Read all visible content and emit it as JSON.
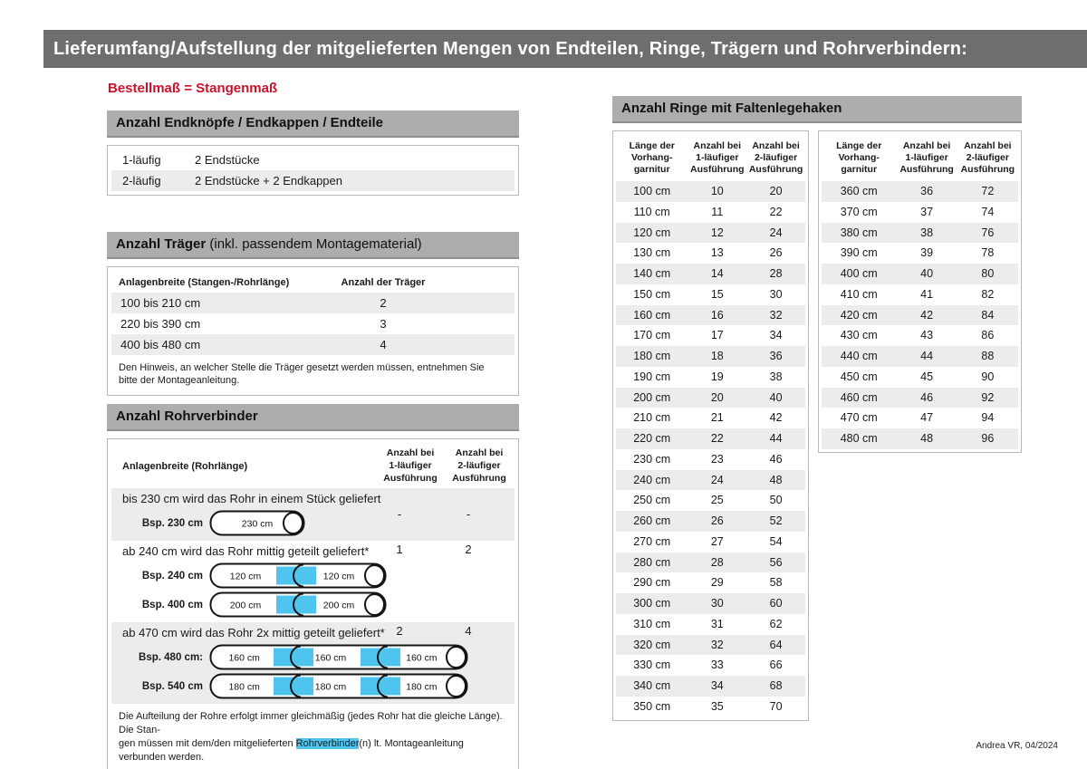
{
  "page": {
    "header_title": "Lieferumfang/Aufstellung der mitgelieferten Mengen von Endteilen, Ringe, Trägern und Rohrverbindern:",
    "subtitle": "Bestellmaß = Stangenmaß",
    "footer": "Andrea VR, 04/2024"
  },
  "colors": {
    "header_bar_gray": "#6e6e6e",
    "section_bar_gray": "#adadad",
    "row_shade_gray": "#ececec",
    "accent_red": "#c8122d",
    "connector_cyan": "#4fc4ee"
  },
  "endteile": {
    "title": "Anzahl Endknöpfe / Endkappen / Endteile",
    "rows": [
      {
        "label": "1-läufig",
        "value": "2 Endstücke"
      },
      {
        "label": "2-läufig",
        "value": "2 Endstücke + 2 Endkappen"
      }
    ]
  },
  "traeger": {
    "title_bold": "Anzahl Träger",
    "title_rest": " (inkl. passendem Montagematerial)",
    "col1": "Anlagenbreite (Stangen-/Rohrlänge)",
    "col2": "Anzahl der Träger",
    "rows": [
      {
        "range": "100 bis 210 cm",
        "count": "2"
      },
      {
        "range": "220 bis 390 cm",
        "count": "3"
      },
      {
        "range": "400 bis 480 cm",
        "count": "4"
      }
    ],
    "note": "Den Hinweis, an welcher Stelle die Träger gesetzt werden müssen, entnehmen Sie bitte der Montageanleitung."
  },
  "rohrverbinder": {
    "title": "Anzahl Rohrverbinder",
    "col1": "Anlagenbreite (Rohrlänge)",
    "col2": "Anzahl bei\n1-läufiger\nAusführung",
    "col3": "Anzahl bei\n2-läufiger\nAusführung",
    "groups": [
      {
        "text": "bis 230 cm wird das Rohr in einem Stück geliefert",
        "v1": "-",
        "v2": "-",
        "shaded": true,
        "centered": true,
        "rods": [
          {
            "label": "Bsp. 230 cm",
            "segments": [
              "230 cm"
            ]
          }
        ]
      },
      {
        "text": "ab 240 cm wird das Rohr mittig geteilt geliefert*",
        "v1": "1",
        "v2": "2",
        "shaded": false,
        "centered": false,
        "rods": [
          {
            "label": "Bsp. 240 cm",
            "segments": [
              "120 cm",
              "120 cm"
            ]
          },
          {
            "label": "Bsp. 400 cm",
            "segments": [
              "200 cm",
              "200 cm"
            ]
          }
        ]
      },
      {
        "text": "ab 470 cm wird das Rohr 2x mittig geteilt geliefert*",
        "v1": "2",
        "v2": "4",
        "shaded": true,
        "centered": false,
        "rods": [
          {
            "label": "Bsp. 480 cm:",
            "segments": [
              "160 cm",
              "160 cm",
              "160 cm"
            ]
          },
          {
            "label": "Bsp. 540 cm",
            "segments": [
              "180 cm",
              "180 cm",
              "180 cm"
            ]
          }
        ]
      }
    ],
    "note_line1": "Die Aufteilung der Rohre erfolgt immer gleichmäßig (jedes Rohr hat die gleiche Länge). Die Stan-",
    "note_line2_pre": "gen müssen mit dem/den mitgelieferten ",
    "note_highlight": "Rohrverbinder",
    "note_line2_post": "(n) lt. Montageanleitung verbunden werden."
  },
  "ringe": {
    "title": "Anzahl Ringe mit Faltenlegehaken",
    "col1": "Länge der\nVorhang-\ngarnitur",
    "col2": "Anzahl bei\n1-läufiger\nAusführung",
    "col3": "Anzahl bei\n2-läufiger\nAusführung",
    "table_left": [
      [
        "100 cm",
        "10",
        "20"
      ],
      [
        "110 cm",
        "11",
        "22"
      ],
      [
        "120 cm",
        "12",
        "24"
      ],
      [
        "130 cm",
        "13",
        "26"
      ],
      [
        "140 cm",
        "14",
        "28"
      ],
      [
        "150 cm",
        "15",
        "30"
      ],
      [
        "160 cm",
        "16",
        "32"
      ],
      [
        "170 cm",
        "17",
        "34"
      ],
      [
        "180 cm",
        "18",
        "36"
      ],
      [
        "190 cm",
        "19",
        "38"
      ],
      [
        "200 cm",
        "20",
        "40"
      ],
      [
        "210 cm",
        "21",
        "42"
      ],
      [
        "220 cm",
        "22",
        "44"
      ],
      [
        "230 cm",
        "23",
        "46"
      ],
      [
        "240 cm",
        "24",
        "48"
      ],
      [
        "250 cm",
        "25",
        "50"
      ],
      [
        "260 cm",
        "26",
        "52"
      ],
      [
        "270 cm",
        "27",
        "54"
      ],
      [
        "280 cm",
        "28",
        "56"
      ],
      [
        "290 cm",
        "29",
        "58"
      ],
      [
        "300 cm",
        "30",
        "60"
      ],
      [
        "310 cm",
        "31",
        "62"
      ],
      [
        "320 cm",
        "32",
        "64"
      ],
      [
        "330 cm",
        "33",
        "66"
      ],
      [
        "340 cm",
        "34",
        "68"
      ],
      [
        "350 cm",
        "35",
        "70"
      ]
    ],
    "table_right": [
      [
        "360 cm",
        "36",
        "72"
      ],
      [
        "370 cm",
        "37",
        "74"
      ],
      [
        "380 cm",
        "38",
        "76"
      ],
      [
        "390 cm",
        "39",
        "78"
      ],
      [
        "400 cm",
        "40",
        "80"
      ],
      [
        "410 cm",
        "41",
        "82"
      ],
      [
        "420 cm",
        "42",
        "84"
      ],
      [
        "430 cm",
        "43",
        "86"
      ],
      [
        "440 cm",
        "44",
        "88"
      ],
      [
        "450 cm",
        "45",
        "90"
      ],
      [
        "460 cm",
        "46",
        "92"
      ],
      [
        "470 cm",
        "47",
        "94"
      ],
      [
        "480 cm",
        "48",
        "96"
      ]
    ]
  }
}
